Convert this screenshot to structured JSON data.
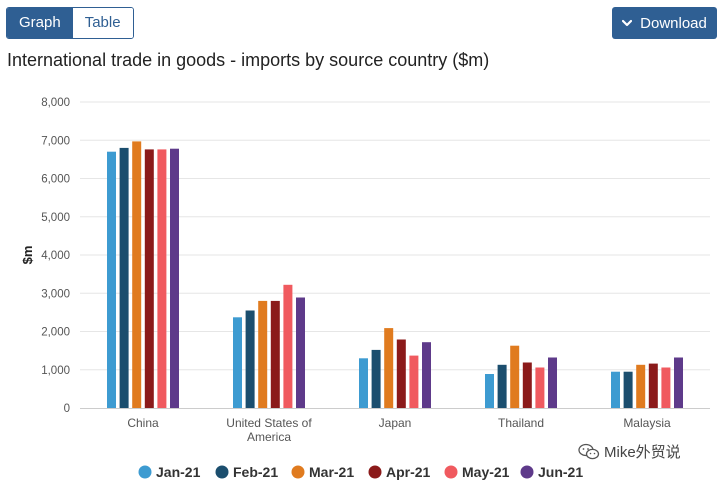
{
  "toolbar": {
    "graph_label": "Graph",
    "table_label": "Table",
    "download_label": "Download"
  },
  "watermark": "Mike外贸说",
  "colors": {
    "accent": "#2f5f93"
  },
  "chart_data": {
    "type": "bar",
    "title": "International trade in goods - imports by source country ($m)",
    "ylabel": "$m",
    "xlabel": "",
    "ylim": [
      0,
      8000
    ],
    "yticks": [
      0,
      1000,
      2000,
      3000,
      4000,
      5000,
      6000,
      7000,
      8000
    ],
    "ytick_labels": [
      "0",
      "1,000",
      "2,000",
      "3,000",
      "4,000",
      "5,000",
      "6,000",
      "7,000",
      "8,000"
    ],
    "grid": true,
    "legend_position": "bottom",
    "categories": [
      [
        "China"
      ],
      [
        "United States of",
        "America"
      ],
      [
        "Japan"
      ],
      [
        "Thailand"
      ],
      [
        "Malaysia"
      ]
    ],
    "series": [
      {
        "name": "Jan-21",
        "color": "#3d9bd1",
        "values": [
          6700,
          2370,
          1300,
          890,
          950
        ]
      },
      {
        "name": "Feb-21",
        "color": "#1b4e6e",
        "values": [
          6800,
          2550,
          1520,
          1130,
          950
        ]
      },
      {
        "name": "Mar-21",
        "color": "#e07b1f",
        "values": [
          6970,
          2800,
          2090,
          1630,
          1130
        ]
      },
      {
        "name": "Apr-21",
        "color": "#8b1a1a",
        "values": [
          6760,
          2800,
          1790,
          1190,
          1160
        ]
      },
      {
        "name": "May-21",
        "color": "#f05a5f",
        "values": [
          6760,
          3220,
          1370,
          1060,
          1060
        ]
      },
      {
        "name": "Jun-21",
        "color": "#5e3a8a",
        "values": [
          6780,
          2890,
          1720,
          1320,
          1320
        ]
      }
    ]
  }
}
